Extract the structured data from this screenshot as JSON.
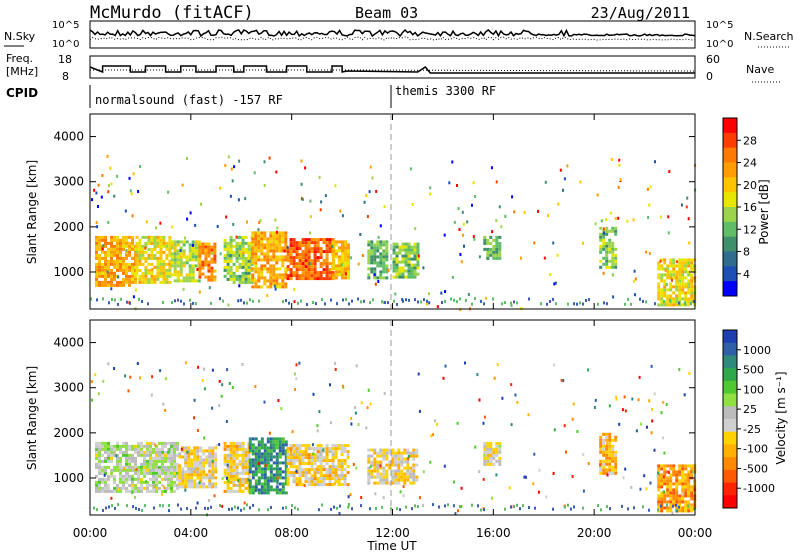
{
  "header": {
    "station": "McMurdo (fitACF)",
    "beam": "Beam 03",
    "date": "23/Aug/2011"
  },
  "panels": {
    "nsky": {
      "label": "N.Sky",
      "ticks": [
        "10^5",
        "10^0"
      ]
    },
    "nsearch": {
      "label": "N.Search",
      "ticks": [
        "10^5",
        "10^0"
      ]
    },
    "freq": {
      "label_line1": "Freq.",
      "label_line2": "[MHz]",
      "ticks": [
        "18",
        "8"
      ]
    },
    "nave": {
      "label": "Nave",
      "ticks": [
        "60",
        "0"
      ]
    },
    "cpid": {
      "label": "CPID",
      "segments": [
        {
          "start": "00:00",
          "name": "normalsound (fast) -157 RF"
        },
        {
          "start": "12:00",
          "name": "themis 3300 RF"
        }
      ]
    }
  },
  "colorbars": {
    "power": {
      "label": "Power [dB]",
      "ticks": [
        "28",
        "24",
        "20",
        "16",
        "12",
        "8",
        "4"
      ],
      "colors": [
        "#ff0000",
        "#ff3c00",
        "#ff7b00",
        "#ff9d00",
        "#ffc400",
        "#e6e600",
        "#9bd44a",
        "#5fbd68",
        "#3f8f6a",
        "#2f6d8f",
        "#1e4fb4",
        "#0000ff"
      ]
    },
    "velocity": {
      "label": "Velocity [m s⁻¹]",
      "ticks": [
        "1000",
        "500",
        "100",
        "25",
        "-25",
        "-100",
        "-500",
        "-1000"
      ],
      "colors": [
        "#1e3fb0",
        "#2f5fa8",
        "#2e8a7a",
        "#2fa84a",
        "#4fc832",
        "#8fe040",
        "#bcbcbc",
        "#d0d0d0",
        "#ffd200",
        "#ffb000",
        "#ff8a00",
        "#ff5a00",
        "#ff2400",
        "#ff0000"
      ]
    }
  },
  "chart_data": [
    {
      "type": "heatmap",
      "title": "Power",
      "ylabel": "Slant Range [km]",
      "xlabel": "",
      "x_ticks": [
        "00:00",
        "04:00",
        "08:00",
        "12:00",
        "16:00",
        "20:00",
        "00:00"
      ],
      "y_ticks": [
        "1000",
        "2000",
        "3000",
        "4000"
      ],
      "ylim": [
        180,
        4500
      ],
      "xlim": [
        "00:00",
        "24:00"
      ],
      "units": "dB",
      "clim": [
        0,
        32
      ],
      "echo_regions": [
        {
          "t0": 0.2,
          "t1": 1.8,
          "r0": 700,
          "r1": 1800,
          "value": 22
        },
        {
          "t0": 1.8,
          "t1": 3.2,
          "r0": 750,
          "r1": 1800,
          "value": 18
        },
        {
          "t0": 3.2,
          "t1": 4.3,
          "r0": 800,
          "r1": 1700,
          "value": 16
        },
        {
          "t0": 4.3,
          "t1": 5.0,
          "r0": 800,
          "r1": 1650,
          "value": 24
        },
        {
          "t0": 5.3,
          "t1": 6.4,
          "r0": 800,
          "r1": 1800,
          "value": 14
        },
        {
          "t0": 6.4,
          "t1": 7.8,
          "r0": 700,
          "r1": 1900,
          "value": 22
        },
        {
          "t0": 7.8,
          "t1": 9.6,
          "r0": 850,
          "r1": 1750,
          "value": 26
        },
        {
          "t0": 9.6,
          "t1": 10.2,
          "r0": 900,
          "r1": 1700,
          "value": 20
        },
        {
          "t0": 11.0,
          "t1": 11.8,
          "r0": 900,
          "r1": 1700,
          "value": 12
        },
        {
          "t0": 12.0,
          "t1": 13.0,
          "r0": 900,
          "r1": 1650,
          "value": 14
        },
        {
          "t0": 15.6,
          "t1": 16.2,
          "r0": 1300,
          "r1": 1800,
          "value": 12
        },
        {
          "t0": 20.2,
          "t1": 20.8,
          "r0": 1100,
          "r1": 2000,
          "value": 14
        },
        {
          "t0": 22.5,
          "t1": 24.0,
          "r0": 300,
          "r1": 1300,
          "value": 18
        }
      ]
    },
    {
      "type": "heatmap",
      "title": "Velocity",
      "ylabel": "Slant Range [km]",
      "xlabel": "Time UT",
      "x_ticks": [
        "00:00",
        "04:00",
        "08:00",
        "12:00",
        "16:00",
        "20:00",
        "00:00"
      ],
      "y_ticks": [
        "1000",
        "2000",
        "3000",
        "4000"
      ],
      "ylim": [
        180,
        4500
      ],
      "xlim": [
        "00:00",
        "24:00"
      ],
      "units": "m s-1",
      "clim": [
        -1000,
        1000
      ],
      "echo_regions": [
        {
          "t0": 0.2,
          "t1": 3.5,
          "r0": 700,
          "r1": 1800,
          "value": 80
        },
        {
          "t0": 3.5,
          "t1": 5.0,
          "r0": 800,
          "r1": 1700,
          "value": -150
        },
        {
          "t0": 5.3,
          "t1": 6.3,
          "r0": 700,
          "r1": 1800,
          "value": -200
        },
        {
          "t0": 6.3,
          "t1": 7.8,
          "r0": 700,
          "r1": 1900,
          "value": 600
        },
        {
          "t0": 7.8,
          "t1": 10.2,
          "r0": 850,
          "r1": 1750,
          "value": -200
        },
        {
          "t0": 11.0,
          "t1": 13.0,
          "r0": 900,
          "r1": 1650,
          "value": -150
        },
        {
          "t0": 15.6,
          "t1": 16.2,
          "r0": 1300,
          "r1": 1800,
          "value": -100
        },
        {
          "t0": 20.2,
          "t1": 20.8,
          "r0": 1100,
          "r1": 2000,
          "value": -300
        },
        {
          "t0": 22.5,
          "t1": 24.0,
          "r0": 300,
          "r1": 1300,
          "value": -400
        }
      ]
    }
  ]
}
